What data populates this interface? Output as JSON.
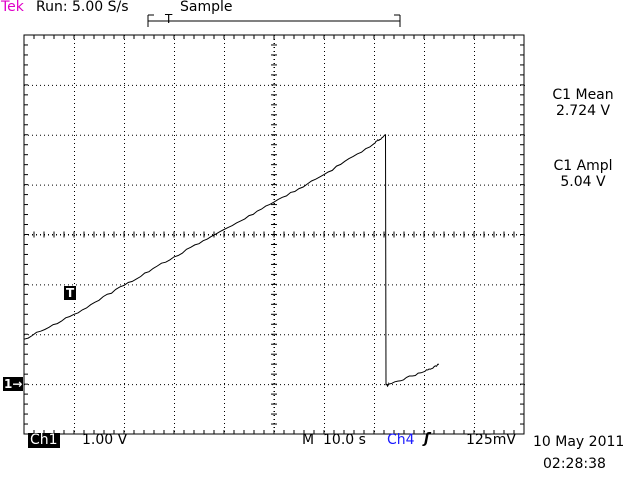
{
  "header": {
    "brand": "Tek",
    "run_status": "Run: 5.00 S/s",
    "acq_mode": "Sample"
  },
  "trigger_marker_label": "T",
  "channel_marker_label": "1",
  "channel_marker_arrow": "→",
  "measurements": [
    {
      "label": "C1 Mean",
      "value": "2.724 V"
    },
    {
      "label": "C1 Ampl",
      "value": "5.04 V"
    }
  ],
  "footer": {
    "channel": "Ch1",
    "volts_per_div": "1.00 V",
    "timebase_prefix": "M",
    "timebase": "10.0 s",
    "trigger_source": "Ch4",
    "trigger_slope_symbol": "ʃ",
    "trigger_level": "125mV",
    "date": "10 May 2011",
    "time": "02:28:38"
  },
  "colors": {
    "brand": "#e000c8",
    "trigger_source": "#1a1aff",
    "trace": "#000000",
    "graticule": "#000000"
  },
  "chart_data": {
    "type": "line",
    "xlabel": "",
    "ylabel": "",
    "x_unit": "s",
    "y_unit": "V",
    "xlim": [
      -50,
      50
    ],
    "ylim": [
      -1.0,
      7.0
    ],
    "grid": true,
    "series": [
      {
        "x": [
          -50,
          -40,
          -30,
          -20,
          -10,
          0,
          10,
          20,
          22.3,
          22.4,
          23,
          30,
          33
        ],
        "values": [
          0.9,
          1.4,
          1.98,
          2.55,
          3.1,
          3.65,
          4.2,
          4.82,
          5.0,
          -0.02,
          0.0,
          0.25,
          0.4
        ]
      }
    ]
  }
}
